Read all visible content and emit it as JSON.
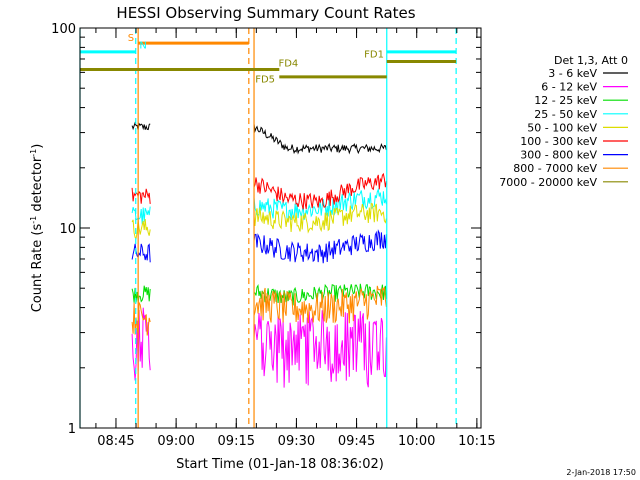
{
  "chart_data": {
    "type": "line",
    "title": "HESSI Observing Summary Count Rates",
    "xlabel": "Start Time (01-Jan-18 08:36:02)",
    "ylabel": "Count Rate (s",
    "ylabel_sup1": "-1",
    "ylabel_mid": " detector",
    "ylabel_sup2": "-1",
    "ylabel_end": ")",
    "y_scale": "log",
    "ylim": [
      1,
      100
    ],
    "x_range_minutes": [
      0,
      100
    ],
    "x_ticks": [
      {
        "label": "08:45",
        "minute": 8.97
      },
      {
        "label": "09:00",
        "minute": 23.97
      },
      {
        "label": "09:15",
        "minute": 38.97
      },
      {
        "label": "09:30",
        "minute": 53.97
      },
      {
        "label": "09:45",
        "minute": 68.97
      },
      {
        "label": "10:00",
        "minute": 83.97
      },
      {
        "label": "10:15",
        "minute": 98.97
      }
    ],
    "y_ticks": [
      {
        "label": "1",
        "value": 1
      },
      {
        "label": "10",
        "value": 10
      },
      {
        "label": "100",
        "value": 100
      }
    ],
    "legend_title": "Det 1,3, Att 0",
    "legend_position": "right",
    "segments": [
      [
        13.0,
        17.6
      ],
      [
        43.4,
        76.5
      ]
    ],
    "series": [
      {
        "name": "3 - 6 keV",
        "color": "#000000",
        "seg1": 32,
        "seg2": [
          32,
          25,
          25,
          25,
          25
        ],
        "noise": 0.05
      },
      {
        "name": "6 - 12 keV",
        "color": "#ff00ff",
        "seg1": 3.0,
        "seg2": [
          2.9,
          2.8,
          2.9,
          2.9,
          2.9
        ],
        "noise": 0.35
      },
      {
        "name": "12 - 25 keV",
        "color": "#00dd00",
        "seg1": 4.7,
        "seg2": [
          4.8,
          4.5,
          4.7,
          4.8,
          4.8
        ],
        "noise": 0.1
      },
      {
        "name": "25 - 50 keV",
        "color": "#00ffff",
        "seg1": 11.5,
        "seg2": [
          13.0,
          12.3,
          12.5,
          14.0,
          14.5
        ],
        "noise": 0.12
      },
      {
        "name": "50 - 100 keV",
        "color": "#dddd00",
        "seg1": 10.0,
        "seg2": [
          11.5,
          10.8,
          10.8,
          11.8,
          12.0
        ],
        "noise": 0.12
      },
      {
        "name": "100 - 300 keV",
        "color": "#ff0000",
        "seg1": 14.5,
        "seg2": [
          17.0,
          14.0,
          13.5,
          16.0,
          17.5
        ],
        "noise": 0.1
      },
      {
        "name": "300 - 800 keV",
        "color": "#0000ff",
        "seg1": 7.5,
        "seg2": [
          8.5,
          7.7,
          7.5,
          8.3,
          9.0
        ],
        "noise": 0.12
      },
      {
        "name": "800 - 7000 keV",
        "color": "#ff8800",
        "seg1": 3.6,
        "seg2": [
          4.3,
          4.0,
          4.0,
          4.2,
          4.5
        ],
        "noise": 0.2
      },
      {
        "name": "7000 - 20000 keV",
        "color": "#888800",
        "seg1": null,
        "seg2": null,
        "noise": 0
      }
    ],
    "vertical_markers": [
      {
        "minute": 0.0,
        "color": "#00ffff",
        "style": "solid"
      },
      {
        "minute": 13.9,
        "color": "#00ffff",
        "style": "dashed"
      },
      {
        "minute": 14.5,
        "color": "#ff8800",
        "style": "solid"
      },
      {
        "minute": 42.1,
        "color": "#ff8800",
        "style": "dashed"
      },
      {
        "minute": 43.4,
        "color": "#ff8800",
        "style": "solid"
      },
      {
        "minute": 76.5,
        "color": "#00ffff",
        "style": "solid"
      },
      {
        "minute": 93.8,
        "color": "#00ffff",
        "style": "dashed"
      }
    ],
    "horizontal_bars": [
      {
        "label": "",
        "x_start": 0,
        "x_end": 13.9,
        "value": 76,
        "color": "#00ffff"
      },
      {
        "label": "",
        "x_start": 0,
        "x_end": 49.7,
        "value": 62,
        "color": "#888800"
      },
      {
        "label": "",
        "x_start": 14.5,
        "x_end": 42.1,
        "value": 84,
        "color": "#ff8800"
      },
      {
        "label": "",
        "x_start": 49.7,
        "x_end": 76.5,
        "value": 57,
        "color": "#888800"
      },
      {
        "label": "",
        "x_start": 76.5,
        "x_end": 93.8,
        "value": 76,
        "color": "#00ffff"
      },
      {
        "label": "",
        "x_start": 76.5,
        "x_end": 93.8,
        "value": 68,
        "color": "#888800"
      }
    ],
    "bar_labels": [
      {
        "text": "S",
        "minute": 13.5,
        "value": 86,
        "color": "#ff8800",
        "anchor": "end"
      },
      {
        "text": "N",
        "minute": 14.8,
        "value": 79,
        "color": "#00ffff",
        "anchor": "start"
      },
      {
        "text": "FD4",
        "minute": 49.5,
        "value": 62,
        "color": "#888800",
        "anchor": "start",
        "dy": -3
      },
      {
        "text": "FD5",
        "minute": 43.7,
        "value": 56,
        "color": "#888800",
        "anchor": "start",
        "dy": 4
      },
      {
        "text": "FD1",
        "minute": 75.8,
        "value": 68,
        "color": "#888800",
        "anchor": "end",
        "dy": -4
      }
    ],
    "footer_date": "2-Jan-2018 17:50"
  }
}
